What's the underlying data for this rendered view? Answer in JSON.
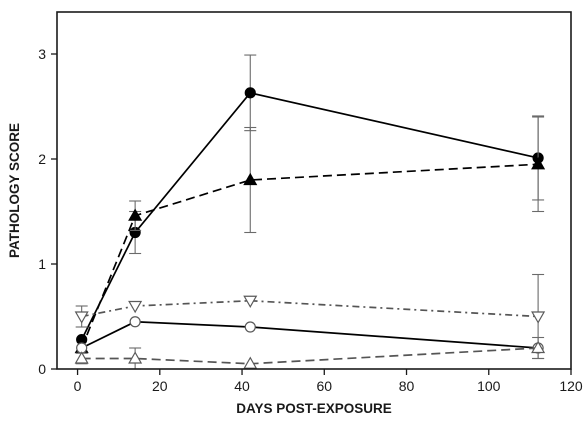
{
  "chart_data": {
    "type": "line",
    "title": "",
    "xlabel": "DAYS POST-EXPOSURE",
    "ylabel": "PATHOLOGY SCORE",
    "xlim": [
      -5,
      120
    ],
    "ylim": [
      0,
      3.4
    ],
    "xticks": [
      0,
      20,
      40,
      60,
      80,
      100,
      120
    ],
    "yticks": [
      0,
      1,
      2,
      3
    ],
    "grid": false,
    "legend": "none",
    "series": [
      {
        "marker": "filled-circle",
        "line": "solid",
        "color": "#000000",
        "x": [
          1,
          14,
          42,
          112
        ],
        "y": [
          0.28,
          1.3,
          2.63,
          2.01
        ],
        "err": [
          0,
          0.2,
          0.36,
          0.4
        ]
      },
      {
        "marker": "filled-triangle-up",
        "line": "dashed",
        "color": "#000000",
        "x": [
          1,
          14,
          42,
          112
        ],
        "y": [
          0.2,
          1.46,
          1.8,
          1.95
        ],
        "err": [
          0,
          0.14,
          0.5,
          0.45
        ]
      },
      {
        "marker": "open-triangle-down",
        "line": "dash-dot",
        "color": "#555555",
        "x": [
          1,
          14,
          42,
          112
        ],
        "y": [
          0.5,
          0.6,
          0.65,
          0.5
        ],
        "err": [
          0.1,
          0,
          0,
          0.4
        ]
      },
      {
        "marker": "open-circle",
        "line": "solid",
        "color": "#000000",
        "x": [
          1,
          14,
          42,
          112
        ],
        "y": [
          0.2,
          0.45,
          0.4,
          0.2
        ],
        "err": [
          0,
          0,
          0,
          0
        ]
      },
      {
        "marker": "open-triangle-up",
        "line": "dashed",
        "color": "#555555",
        "x": [
          1,
          14,
          42,
          112
        ],
        "y": [
          0.1,
          0.1,
          0.05,
          0.2
        ],
        "err": [
          0.05,
          0.1,
          0,
          0.1
        ]
      }
    ]
  }
}
